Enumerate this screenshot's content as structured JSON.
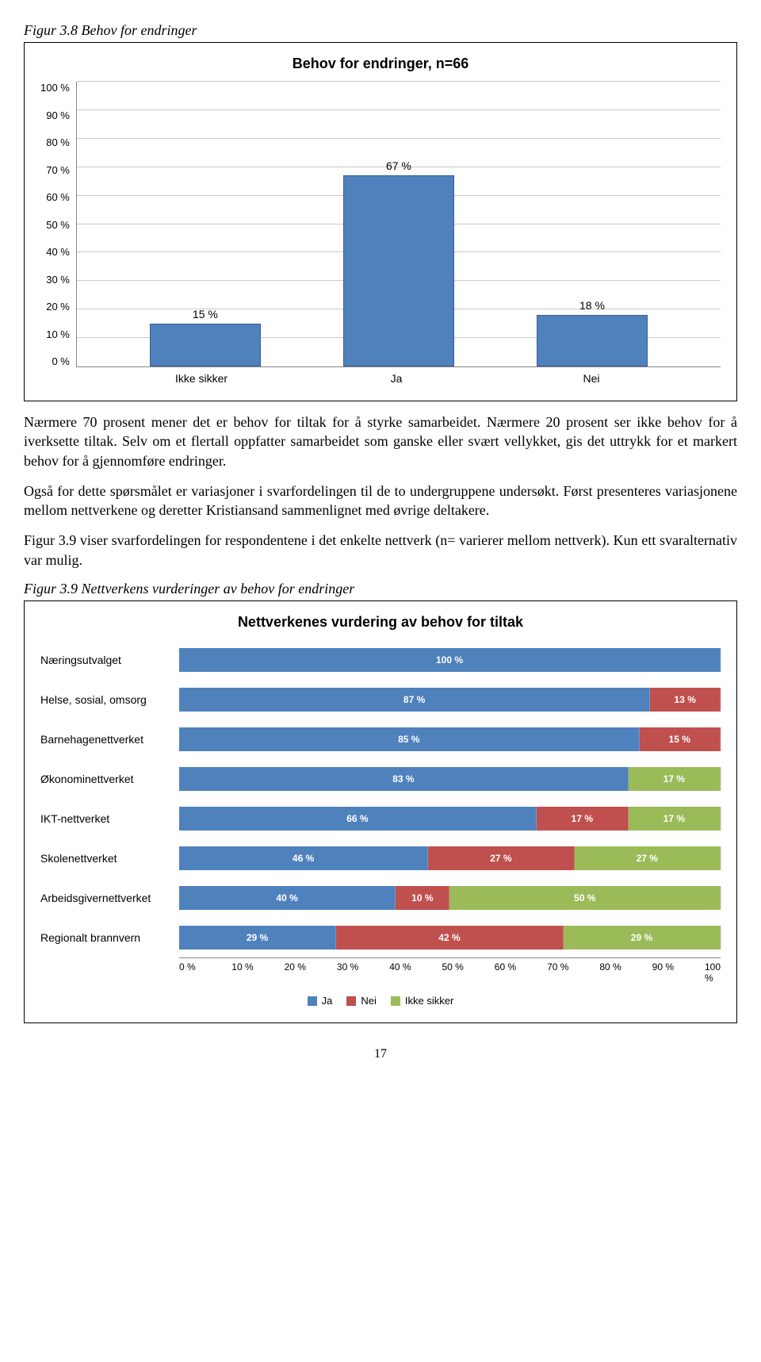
{
  "figure1": {
    "caption": "Figur 3.8 Behov for endringer",
    "title": "Behov for endringer, n=66",
    "type": "bar",
    "categories": [
      "Ikke sikker",
      "Ja",
      "Nei"
    ],
    "values": [
      15,
      67,
      18
    ],
    "value_labels": [
      "15 %",
      "67 %",
      "18 %"
    ],
    "bar_color": "#4f81bd",
    "bar_border": "#3a5f8a",
    "ylim": [
      0,
      100
    ],
    "ytick_step": 10,
    "ytick_labels": [
      "100 %",
      "90 %",
      "80 %",
      "70 %",
      "60 %",
      "50 %",
      "40 %",
      "30 %",
      "20 %",
      "10 %",
      "0 %"
    ],
    "grid_color": "#c9c9c9",
    "background": "#ffffff"
  },
  "paragraphs": {
    "p1": "Nærmere 70 prosent mener det er behov for tiltak for å styrke samarbeidet. Nærmere 20 prosent ser ikke behov for å iverksette tiltak. Selv om et flertall oppfatter samarbeidet som ganske eller svært vellykket, gis det uttrykk for et markert behov for å gjennomføre endringer.",
    "p2": "Også for dette spørsmålet er variasjoner i svarfordelingen til de to undergruppene undersøkt. Først presenteres variasjonene mellom nettverkene og deretter Kristiansand sammenlignet med øvrige deltakere.",
    "p3": "Figur 3.9 viser svarfordelingen for respondentene i det enkelte nettverk (n= varierer mellom nettverk). Kun ett svaralternativ var mulig."
  },
  "figure2": {
    "caption": "Figur 3.9 Nettverkens vurderinger av behov for endringer",
    "title": "Nettverkenes vurdering av behov for tiltak",
    "type": "stacked_bar_horizontal",
    "series": [
      {
        "name": "Ja",
        "color": "#4f81bd"
      },
      {
        "name": "Nei",
        "color": "#c0504d"
      },
      {
        "name": "Ikke sikker",
        "color": "#9bbb59"
      }
    ],
    "rows": [
      {
        "label": "Næringsutvalget",
        "values": [
          100,
          0,
          0
        ],
        "labels": [
          "100 %",
          "",
          ""
        ]
      },
      {
        "label": "Helse, sosial, omsorg",
        "values": [
          87,
          13,
          0
        ],
        "labels": [
          "87 %",
          "13 %",
          ""
        ]
      },
      {
        "label": "Barnehagenettverket",
        "values": [
          85,
          15,
          0
        ],
        "labels": [
          "85 %",
          "15 %",
          ""
        ]
      },
      {
        "label": "Økonominettverket",
        "values": [
          83,
          0,
          17
        ],
        "labels": [
          "83 %",
          "",
          "17 %"
        ]
      },
      {
        "label": "IKT-nettverket",
        "values": [
          66,
          17,
          17
        ],
        "labels": [
          "66 %",
          "17 %",
          "17 %"
        ]
      },
      {
        "label": "Skolenettverket",
        "values": [
          46,
          27,
          27
        ],
        "labels": [
          "46 %",
          "27 %",
          "27 %"
        ]
      },
      {
        "label": "Arbeidsgivernettverket",
        "values": [
          40,
          10,
          50
        ],
        "labels": [
          "40 %",
          "10 %",
          "50 %"
        ]
      },
      {
        "label": "Regionalt brannvern",
        "values": [
          29,
          42,
          29
        ],
        "labels": [
          "29 %",
          "42 %",
          "29 %"
        ]
      }
    ],
    "xtick_labels": [
      "0 %",
      "10 %",
      "20 %",
      "30 %",
      "40 %",
      "50 %",
      "60 %",
      "70 %",
      "80 %",
      "90 %",
      "100 %"
    ],
    "grid_color": "#d9d9d9"
  },
  "page_number": "17"
}
